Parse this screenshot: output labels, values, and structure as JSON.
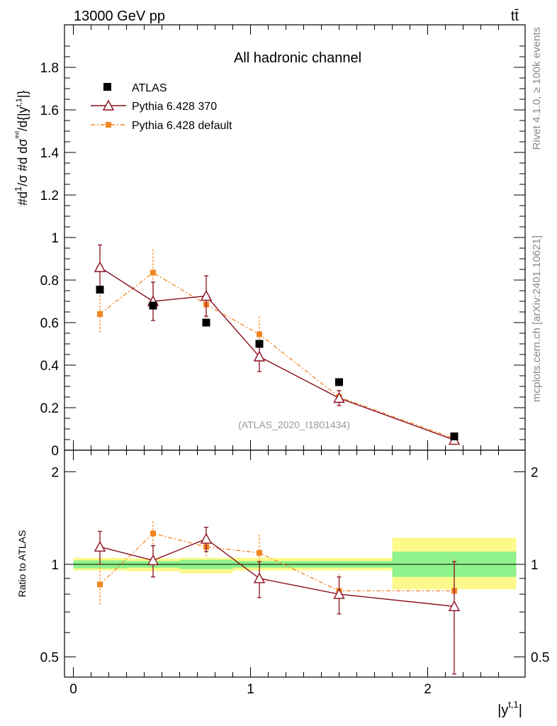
{
  "header": {
    "energy_label": "13000 GeV pp",
    "process_label": "tt̄"
  },
  "side_text": {
    "rivet": "Rivet 4.1.0, ≥ 100k events",
    "mcplots": "mcplots.cern.ch [arXiv:2401.10621]"
  },
  "chart_data": {
    "type": "scatter",
    "title": "All hadronic channel",
    "analysis_id": "(ATLAS_2020_I1801434)",
    "xlabel": "|y^{t,1}|",
    "ylabel": "#d₁/σ #d dσ^{ᵐᵈ}/d{|y^{t,1}|}",
    "xlim": [
      -0.05,
      2.55
    ],
    "ylim": [
      0,
      2.0
    ],
    "x_ticks": [
      "0",
      "1",
      "2"
    ],
    "y_ticks": [
      "0",
      "0.2",
      "0.4",
      "0.6",
      "0.8",
      "1",
      "1.2",
      "1.4",
      "1.6",
      "1.8"
    ],
    "legend": [
      "ATLAS",
      "Pythia 6.428 370",
      "Pythia 6.428 default"
    ],
    "series": [
      {
        "name": "ATLAS",
        "color": "#000000",
        "x": [
          0.15,
          0.45,
          0.75,
          1.05,
          1.5,
          2.15
        ],
        "values": [
          0.755,
          0.68,
          0.6,
          0.5,
          0.32,
          0.065
        ],
        "bins": [
          [
            0.0,
            0.3
          ],
          [
            0.3,
            0.6
          ],
          [
            0.6,
            0.9
          ],
          [
            0.9,
            1.2
          ],
          [
            1.2,
            1.8
          ],
          [
            1.8,
            2.5
          ]
        ]
      },
      {
        "name": "Pythia 6.428 370",
        "color": "#8b0e1f",
        "x": [
          0.15,
          0.45,
          0.75,
          1.05,
          1.5,
          2.15
        ],
        "values": [
          0.86,
          0.7,
          0.725,
          0.44,
          0.245,
          0.048
        ],
        "errors": [
          0.105,
          0.09,
          0.095,
          0.07,
          0.035,
          0.02
        ]
      },
      {
        "name": "Pythia 6.428 default",
        "color": "#f28522",
        "x": [
          0.15,
          0.45,
          0.75,
          1.05,
          1.5,
          2.15
        ],
        "values": [
          0.64,
          0.835,
          0.685,
          0.545,
          0.25,
          0.055
        ],
        "errors": [
          0.09,
          0.11,
          0.08,
          0.085,
          0.035,
          0.015
        ]
      }
    ],
    "ratio": {
      "ylabel": "Ratio to ATLAS",
      "ylim": [
        0.43,
        2.35
      ],
      "y_ticks": [
        "0.5",
        "1",
        "2"
      ],
      "atlas_band_inner": [
        {
          "x0": 0.0,
          "x1": 0.3,
          "lo": 0.97,
          "hi": 1.03
        },
        {
          "x0": 0.3,
          "x1": 0.6,
          "lo": 0.975,
          "hi": 1.025
        },
        {
          "x0": 0.6,
          "x1": 0.9,
          "lo": 0.965,
          "hi": 1.035
        },
        {
          "x0": 0.9,
          "x1": 1.2,
          "lo": 0.975,
          "hi": 1.025
        },
        {
          "x0": 1.2,
          "x1": 1.8,
          "lo": 0.975,
          "hi": 1.025
        },
        {
          "x0": 1.8,
          "x1": 2.5,
          "lo": 0.91,
          "hi": 1.1
        }
      ],
      "atlas_band_outer": [
        {
          "x0": 0.0,
          "x1": 0.3,
          "lo": 0.955,
          "hi": 1.05
        },
        {
          "x0": 0.3,
          "x1": 0.6,
          "lo": 0.95,
          "hi": 1.045
        },
        {
          "x0": 0.6,
          "x1": 0.9,
          "lo": 0.935,
          "hi": 1.05
        },
        {
          "x0": 0.9,
          "x1": 1.2,
          "lo": 0.955,
          "hi": 1.05
        },
        {
          "x0": 1.2,
          "x1": 1.8,
          "lo": 0.955,
          "hi": 1.05
        },
        {
          "x0": 1.8,
          "x1": 2.5,
          "lo": 0.83,
          "hi": 1.22
        }
      ],
      "series": [
        {
          "name": "Pythia 6.428 370",
          "values": [
            1.14,
            1.03,
            1.21,
            0.9,
            0.8,
            0.73
          ],
          "errors": [
            0.14,
            0.12,
            0.11,
            0.12,
            0.11,
            0.29
          ]
        },
        {
          "name": "Pythia 6.428 default",
          "values": [
            0.86,
            1.26,
            1.14,
            1.09,
            0.82,
            0.82
          ],
          "errors": [
            0.12,
            0.12,
            0.09,
            0.16,
            0.11,
            0.22
          ]
        }
      ]
    }
  }
}
